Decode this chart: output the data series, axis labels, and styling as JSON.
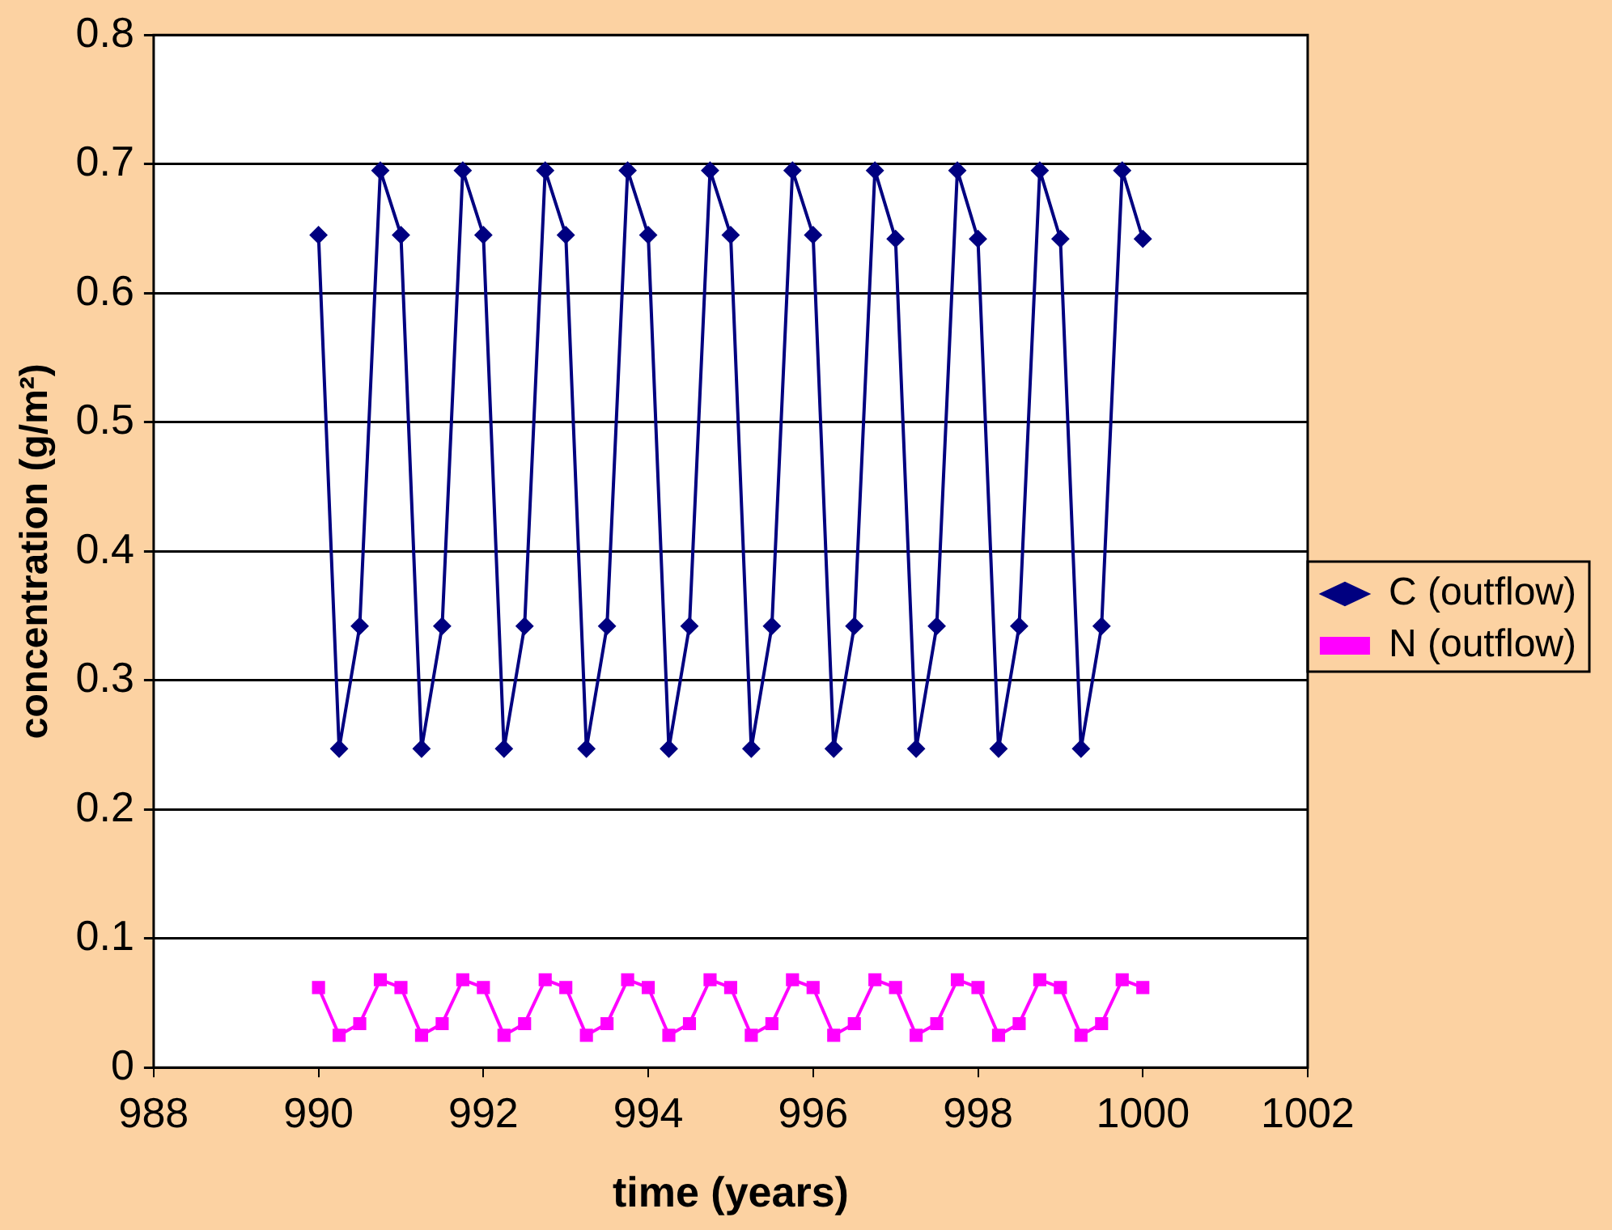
{
  "chart_data": {
    "type": "line",
    "xlabel": "time (years)",
    "ylabel": "concentration (g/m²)",
    "x": [
      990,
      990.25,
      990.5,
      990.75,
      991,
      991.25,
      991.5,
      991.75,
      992,
      992.25,
      992.5,
      992.75,
      993,
      993.25,
      993.5,
      993.75,
      994,
      994.25,
      994.5,
      994.75,
      995,
      995.25,
      995.5,
      995.75,
      996,
      996.25,
      996.5,
      996.75,
      997,
      997.25,
      997.5,
      997.75,
      998,
      998.25,
      998.5,
      998.75,
      999,
      999.25,
      999.5,
      999.75,
      1000
    ],
    "series": [
      {
        "name": "C (outflow)",
        "color": "#000080",
        "marker": "diamond",
        "values": [
          0.645,
          0.247,
          0.342,
          0.695,
          0.645,
          0.247,
          0.342,
          0.695,
          0.645,
          0.247,
          0.342,
          0.695,
          0.645,
          0.247,
          0.342,
          0.695,
          0.645,
          0.247,
          0.342,
          0.695,
          0.645,
          0.247,
          0.342,
          0.695,
          0.645,
          0.247,
          0.342,
          0.695,
          0.642,
          0.247,
          0.342,
          0.695,
          0.642,
          0.247,
          0.342,
          0.695,
          0.642,
          0.247,
          0.342,
          0.695,
          0.642
        ]
      },
      {
        "name": "N (outflow)",
        "color": "#ff00ff",
        "marker": "square",
        "values": [
          0.062,
          0.025,
          0.034,
          0.068,
          0.062,
          0.025,
          0.034,
          0.068,
          0.062,
          0.025,
          0.034,
          0.068,
          0.062,
          0.025,
          0.034,
          0.068,
          0.062,
          0.025,
          0.034,
          0.068,
          0.062,
          0.025,
          0.034,
          0.068,
          0.062,
          0.025,
          0.034,
          0.068,
          0.062,
          0.025,
          0.034,
          0.068,
          0.062,
          0.025,
          0.034,
          0.068,
          0.062,
          0.025,
          0.034,
          0.068,
          0.062
        ]
      }
    ],
    "xlim": [
      988,
      1002
    ],
    "xticks": [
      988,
      990,
      992,
      994,
      996,
      998,
      1000,
      1002
    ],
    "ylim": [
      0,
      0.8
    ],
    "yticks": [
      0,
      0.1,
      0.2,
      0.3,
      0.4,
      0.5,
      0.6,
      0.7,
      0.8
    ],
    "grid": "y",
    "legend": "right"
  }
}
